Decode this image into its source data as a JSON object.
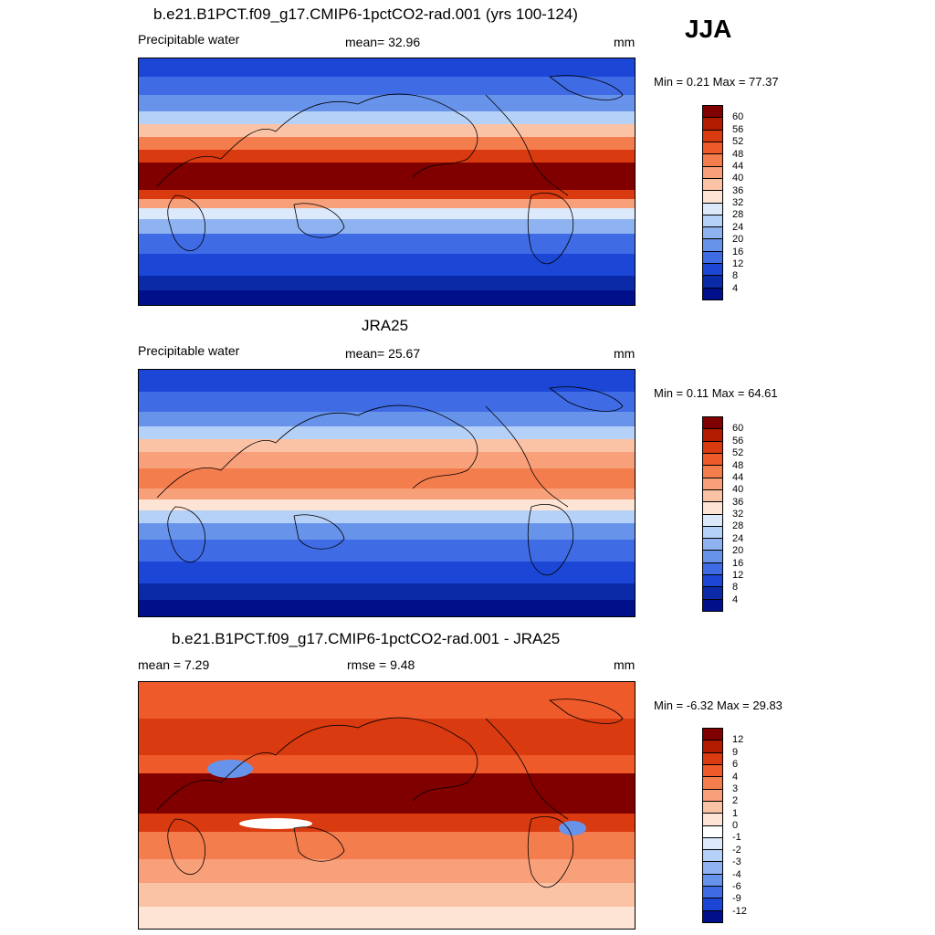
{
  "season": "JJA",
  "panels": [
    {
      "title": "b.e21.B1PCT.f09_g17.CMIP6-1pctCO2-rad.001 (yrs 100-124)",
      "left_label": "Precipitable water",
      "center_label": "mean=  32.96",
      "units": "mm",
      "minmax": "Min =   0.21 Max =  77.37",
      "colorbar_labels": [
        "60",
        "56",
        "52",
        "48",
        "44",
        "40",
        "36",
        "32",
        "28",
        "24",
        "20",
        "16",
        "12",
        "8",
        "4"
      ],
      "colorbar_colors": [
        "#800000",
        "#b31b00",
        "#d93a0f",
        "#ee5a2a",
        "#f47d4d",
        "#f8a07a",
        "#fbc3a6",
        "#fde4d4",
        "#dbe9fb",
        "#b6d1f7",
        "#8eb3f0",
        "#6893eb",
        "#3f6be5",
        "#1c47d6",
        "#0a2aa8",
        "#00108a"
      ]
    },
    {
      "title": "JRA25",
      "left_label": "Precipitable water",
      "center_label": "mean=  25.67",
      "units": "mm",
      "minmax": "Min =   0.11 Max =  64.61",
      "colorbar_labels": [
        "60",
        "56",
        "52",
        "48",
        "44",
        "40",
        "36",
        "32",
        "28",
        "24",
        "20",
        "16",
        "12",
        "8",
        "4"
      ],
      "colorbar_colors": [
        "#800000",
        "#b31b00",
        "#d93a0f",
        "#ee5a2a",
        "#f47d4d",
        "#f8a07a",
        "#fbc3a6",
        "#fde4d4",
        "#dbe9fb",
        "#b6d1f7",
        "#8eb3f0",
        "#6893eb",
        "#3f6be5",
        "#1c47d6",
        "#0a2aa8",
        "#00108a"
      ]
    },
    {
      "title": "b.e21.B1PCT.f09_g17.CMIP6-1pctCO2-rad.001 - JRA25",
      "left_label": "mean =   7.29",
      "center_label": "rmse =   9.48",
      "units": "mm",
      "minmax": "Min =  -6.32 Max =  29.83",
      "colorbar_labels": [
        "12",
        "9",
        "6",
        "4",
        "3",
        "2",
        "1",
        "0",
        "-1",
        "-2",
        "-3",
        "-4",
        "-6",
        "-9",
        "-12"
      ],
      "colorbar_colors": [
        "#800000",
        "#b31b00",
        "#d93a0f",
        "#ee5a2a",
        "#f47d4d",
        "#f8a07a",
        "#fbc3a6",
        "#fde4d4",
        "#ffffff",
        "#dbe9fb",
        "#b6d1f7",
        "#8eb3f0",
        "#6893eb",
        "#3f6be5",
        "#1c47d6",
        "#00108a"
      ]
    }
  ]
}
